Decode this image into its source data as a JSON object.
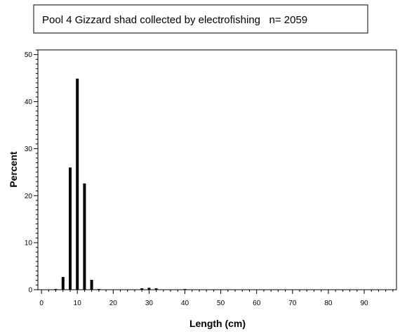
{
  "chart_data": {
    "type": "bar",
    "title": "Pool 4 Gizzard shad collected by electrofishing   n= 2059",
    "xlabel": "Length (cm)",
    "ylabel": "Percent",
    "xlim": [
      -1,
      99
    ],
    "ylim": [
      0,
      51
    ],
    "x_ticks": [
      0,
      10,
      20,
      30,
      40,
      50,
      60,
      70,
      80,
      90
    ],
    "y_ticks": [
      0,
      10,
      20,
      30,
      40,
      50
    ],
    "x_minor_step": 2,
    "y_minor_step": 1,
    "x": [
      4,
      6,
      8,
      10,
      12,
      14,
      16,
      28,
      30,
      32,
      40
    ],
    "values": [
      0.1,
      2.7,
      26.0,
      44.9,
      22.6,
      2.1,
      0.15,
      0.3,
      0.4,
      0.3,
      0.05
    ],
    "bar_color": "#000000",
    "grid": false,
    "legend": false
  }
}
